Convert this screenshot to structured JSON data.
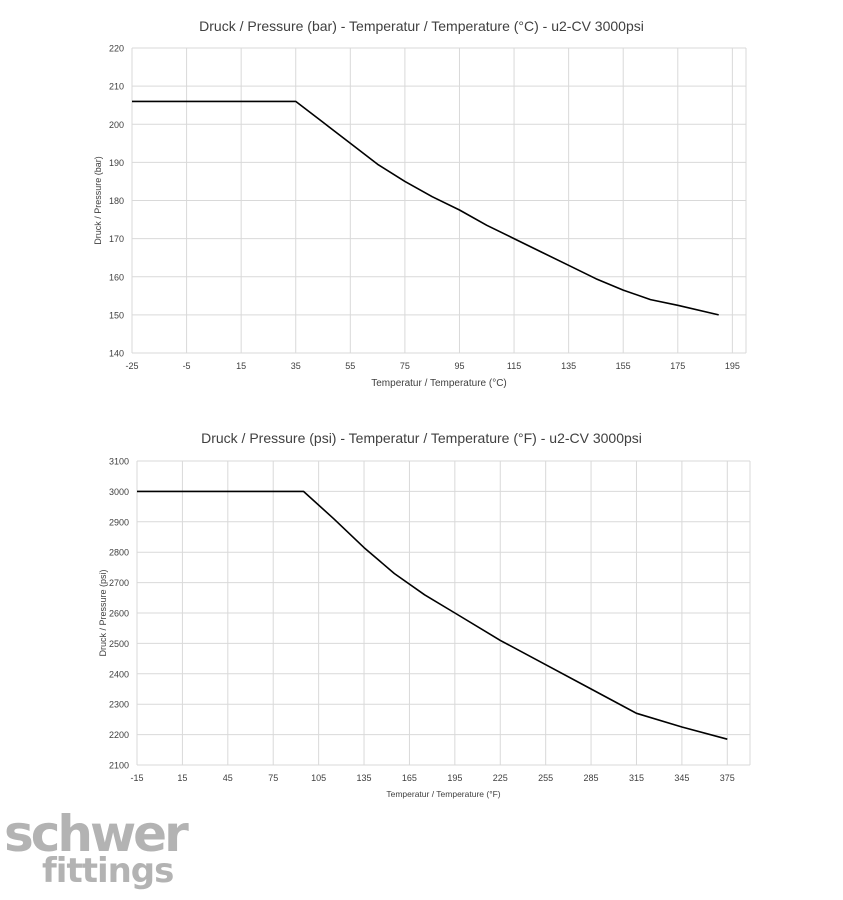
{
  "chart_data": [
    {
      "type": "line",
      "title": "Druck / Pressure (bar) - Temperatur / Temperature (°C) - u2-CV 3000psi",
      "xlabel": "Temperatur / Temperature (°C)",
      "ylabel": "Druck / Pressure (bar)",
      "xlim": [
        -25,
        200
      ],
      "ylim": [
        140,
        220
      ],
      "xticks": [
        -25,
        -5,
        15,
        35,
        55,
        75,
        95,
        115,
        135,
        155,
        175,
        195
      ],
      "yticks": [
        140,
        150,
        160,
        170,
        180,
        190,
        200,
        210,
        220
      ],
      "grid": true,
      "series": [
        {
          "x": [
            -25,
            35,
            45,
            55,
            65,
            75,
            85,
            95,
            105,
            115,
            125,
            135,
            145,
            155,
            165,
            175,
            190
          ],
          "y": [
            206,
            206,
            200.5,
            195,
            189.5,
            185,
            181,
            177.5,
            173.5,
            170,
            166.5,
            163,
            159.5,
            156.5,
            154,
            152.5,
            150
          ]
        }
      ]
    },
    {
      "type": "line",
      "title": "Druck / Pressure (psi) - Temperatur / Temperature (°F) - u2-CV 3000psi",
      "xlabel": "Temperatur / Temperature (°F)",
      "ylabel": "Druck / Pressure (psi)",
      "xlim": [
        -15,
        390
      ],
      "ylim": [
        2100,
        3100
      ],
      "xticks": [
        -15,
        15,
        45,
        75,
        105,
        135,
        165,
        195,
        225,
        255,
        285,
        315,
        345,
        375
      ],
      "yticks": [
        2100,
        2200,
        2300,
        2400,
        2500,
        2600,
        2700,
        2800,
        2900,
        3000,
        3100
      ],
      "grid": true,
      "series": [
        {
          "x": [
            -15,
            95,
            115,
            135,
            155,
            175,
            195,
            225,
            255,
            285,
            315,
            345,
            375
          ],
          "y": [
            3000,
            3000,
            2910,
            2815,
            2730,
            2660,
            2600,
            2510,
            2430,
            2350,
            2270,
            2225,
            2185
          ]
        }
      ]
    }
  ],
  "logo": {
    "line1": "schwer",
    "line2": "fittings"
  },
  "colors": {
    "grid": "#d9d9d9",
    "line": "#000000",
    "logo": "#b3b3b3"
  }
}
